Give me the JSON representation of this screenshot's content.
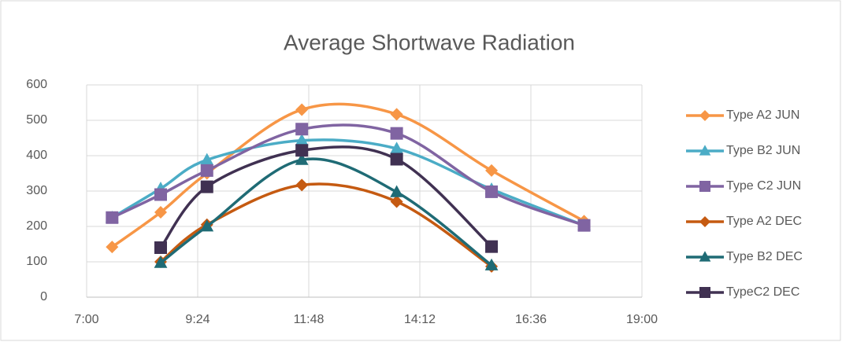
{
  "chart_data": {
    "type": "line",
    "title": "Average Shortwave Radiation",
    "x": [
      7.55,
      8.6,
      9.6,
      11.65,
      13.7,
      15.75,
      17.75
    ],
    "series": [
      {
        "name": "Type A2 JUN",
        "color": "#f79646",
        "marker": "diamond",
        "values": [
          142,
          240,
          350,
          530,
          517,
          358,
          215
        ]
      },
      {
        "name": "Type B2 JUN",
        "color": "#4bacc6",
        "marker": "triangle",
        "values": [
          225,
          307,
          388,
          443,
          420,
          305,
          203
        ]
      },
      {
        "name": "Type C2 JUN",
        "color": "#8064a2",
        "marker": "square",
        "values": [
          225,
          290,
          358,
          475,
          463,
          298,
          203
        ]
      },
      {
        "name": "Type A2 DEC",
        "color": "#c55a11",
        "marker": "diamond",
        "values": [
          null,
          100,
          205,
          317,
          270,
          87,
          null
        ]
      },
      {
        "name": "Type B2 DEC",
        "color": "#1f6b75",
        "marker": "triangle",
        "values": [
          null,
          97,
          200,
          388,
          297,
          90,
          null
        ]
      },
      {
        "name": "TypeC2 DEC",
        "color": "#403152",
        "marker": "square",
        "values": [
          null,
          140,
          312,
          415,
          390,
          143,
          null
        ]
      }
    ],
    "xlim": [
      7,
      19
    ],
    "xticks": [
      {
        "value": 7,
        "label": "7:00"
      },
      {
        "value": 9.4,
        "label": "9:24"
      },
      {
        "value": 11.8,
        "label": "11:48"
      },
      {
        "value": 14.2,
        "label": "14:12"
      },
      {
        "value": 16.6,
        "label": "16:36"
      },
      {
        "value": 19,
        "label": "19:00"
      }
    ],
    "ylim": [
      0,
      600
    ],
    "yticks": [
      0,
      100,
      200,
      300,
      400,
      500,
      600
    ],
    "grid": true,
    "legend": "right"
  }
}
